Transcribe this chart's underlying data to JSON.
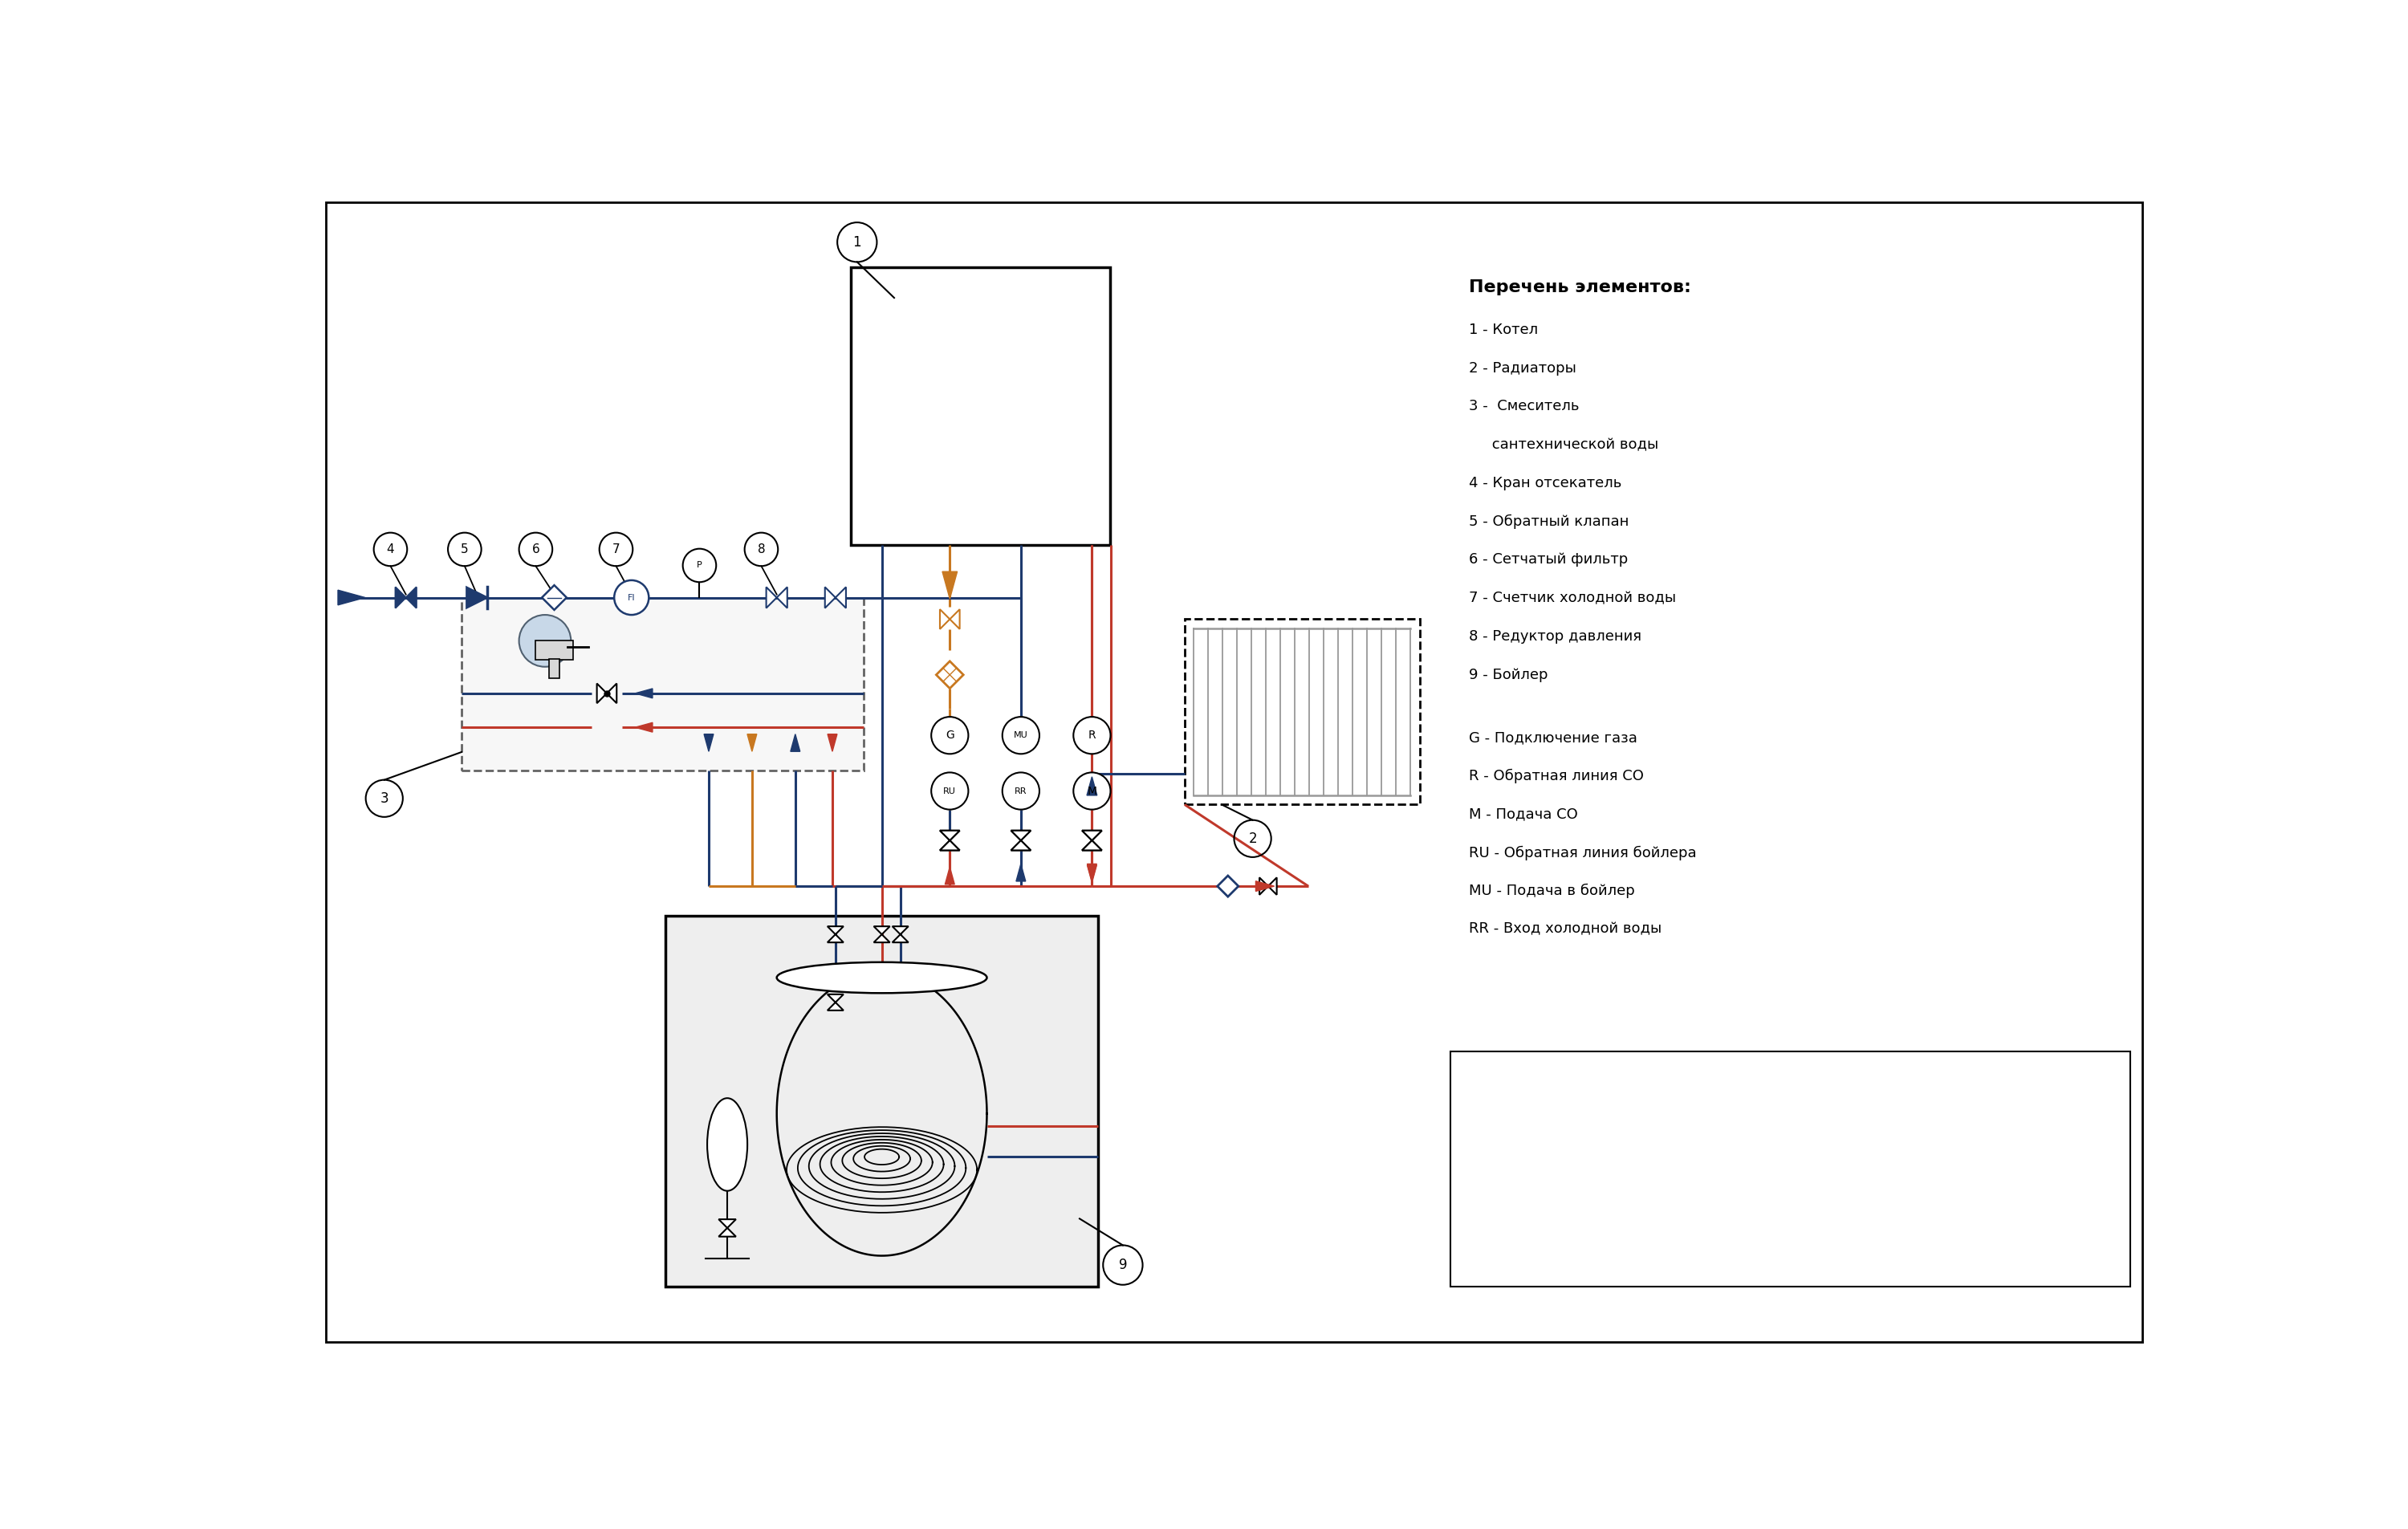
{
  "bg_color": "#ffffff",
  "border_color": "#000000",
  "legend_title": "Перечень элементов:",
  "legend_items": [
    "1 - Котел",
    "2 - Радиаторы",
    "3 -  Смеситель",
    "     сантехнической воды",
    "4 - Кран отсекатель",
    "5 - Обратный клапан",
    "6 - Сетчатый фильтр",
    "7 - Счетчик холодной воды",
    "8 - Редуктор давления",
    "9 - Бойлер"
  ],
  "legend2_items": [
    "G - Подключение газа",
    "R - Обратная линия СО",
    "M - Подача СО",
    "RU - Обратная линия бойлера",
    "MU - Подача в бойлер",
    "RR - Вход холодной воды"
  ],
  "color_blue": "#1e3a6e",
  "color_red": "#c0392b",
  "color_orange": "#c87820",
  "color_black": "#000000"
}
